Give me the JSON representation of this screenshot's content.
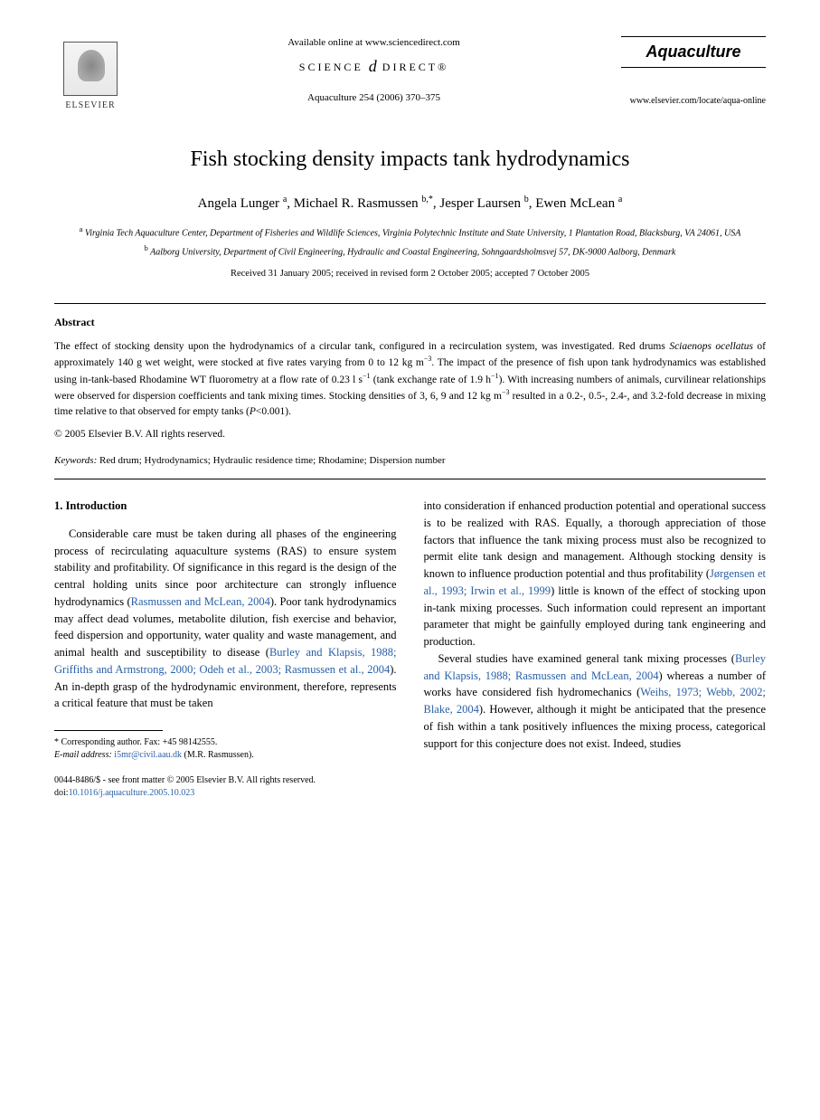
{
  "header": {
    "available_online": "Available online at www.sciencedirect.com",
    "science_direct_left": "SCIENCE",
    "science_direct_swirl": "d",
    "science_direct_right": "DIRECT®",
    "citation": "Aquaculture 254 (2006) 370–375",
    "publisher_name": "ELSEVIER",
    "journal_name": "Aquaculture",
    "journal_url": "www.elsevier.com/locate/aqua-online"
  },
  "article": {
    "title": "Fish stocking density impacts tank hydrodynamics",
    "authors_html": "Angela Lunger <sup>a</sup>, Michael R. Rasmussen <sup>b,*</sup>, Jesper Laursen <sup>b</sup>, Ewen McLean <sup>a</sup>",
    "affiliation_a": "<sup>a</sup> Virginia Tech Aquaculture Center, Department of Fisheries and Wildlife Sciences, Virginia Polytechnic Institute and State University, 1 Plantation Road, Blacksburg, VA 24061, USA",
    "affiliation_b": "<sup>b</sup> Aalborg University, Department of Civil Engineering, Hydraulic and Coastal Engineering, Sohngaardsholmsvej 57, DK-9000 Aalborg, Denmark",
    "dates": "Received 31 January 2005; received in revised form 2 October 2005; accepted 7 October 2005"
  },
  "abstract": {
    "heading": "Abstract",
    "body": "The effect of stocking density upon the hydrodynamics of a circular tank, configured in a recirculation system, was investigated. Red drums <i>Sciaenops ocellatus</i> of approximately 140 g wet weight, were stocked at five rates varying from 0 to 12 kg m<sup>−3</sup>. The impact of the presence of fish upon tank hydrodynamics was established using in-tank-based Rhodamine WT fluorometry at a flow rate of 0.23 l s<sup>−1</sup> (tank exchange rate of 1.9 h<sup>−1</sup>). With increasing numbers of animals, curvilinear relationships were observed for dispersion coefficients and tank mixing times. Stocking densities of 3, 6, 9 and 12 kg m<sup>−3</sup> resulted in a 0.2-, 0.5-, 2.4-, and 3.2-fold decrease in mixing time relative to that observed for empty tanks (<i>P</i><0.001).",
    "copyright": "© 2005 Elsevier B.V. All rights reserved.",
    "keywords_label": "Keywords:",
    "keywords": "Red drum; Hydrodynamics; Hydraulic residence time; Rhodamine; Dispersion number"
  },
  "body": {
    "section_number": "1.",
    "section_title": "Introduction",
    "col1_p1": "Considerable care must be taken during all phases of the engineering process of recirculating aquaculture systems (RAS) to ensure system stability and profitability. Of significance in this regard is the design of the central holding units since poor architecture can strongly influence hydrodynamics (<span class=\"cite-link\">Rasmussen and McLean, 2004</span>). Poor tank hydrodynamics may affect dead volumes, metabolite dilution, fish exercise and behavior, feed dispersion and opportunity, water quality and waste management, and animal health and susceptibility to disease (<span class=\"cite-link\">Burley and Klapsis, 1988; Griffiths and Armstrong, 2000; Odeh et al., 2003; Rasmussen et al., 2004</span>). An in-depth grasp of the hydrodynamic environment, therefore, represents a critical feature that must be taken",
    "col2_p1": "into consideration if enhanced production potential and operational success is to be realized with RAS. Equally, a thorough appreciation of those factors that influence the tank mixing process must also be recognized to permit elite tank design and management. Although stocking density is known to influence production potential and thus profitability (<span class=\"cite-link\">Jørgensen et al., 1993; Irwin et al., 1999</span>) little is known of the effect of stocking upon in-tank mixing processes. Such information could represent an important parameter that might be gainfully employed during tank engineering and production.",
    "col2_p2": "Several studies have examined general tank mixing processes (<span class=\"cite-link\">Burley and Klapsis, 1988; Rasmussen and McLean, 2004</span>) whereas a number of works have considered fish hydromechanics (<span class=\"cite-link\">Weihs, 1973; Webb, 2002; Blake, 2004</span>). However, although it might be anticipated that the presence of fish within a tank positively influences the mixing process, categorical support for this conjecture does not exist. Indeed, studies"
  },
  "footnote": {
    "corresponding": "* Corresponding author. Fax: +45 98142555.",
    "email_label": "E-mail address:",
    "email": "i5mr@civil.aau.dk",
    "email_attribution": "(M.R. Rasmussen)."
  },
  "footer": {
    "issn_line": "0044-8486/$ - see front matter © 2005 Elsevier B.V. All rights reserved.",
    "doi_label": "doi:",
    "doi": "10.1016/j.aquaculture.2005.10.023"
  },
  "colors": {
    "link": "#2860a8",
    "text": "#000000",
    "background": "#ffffff"
  }
}
